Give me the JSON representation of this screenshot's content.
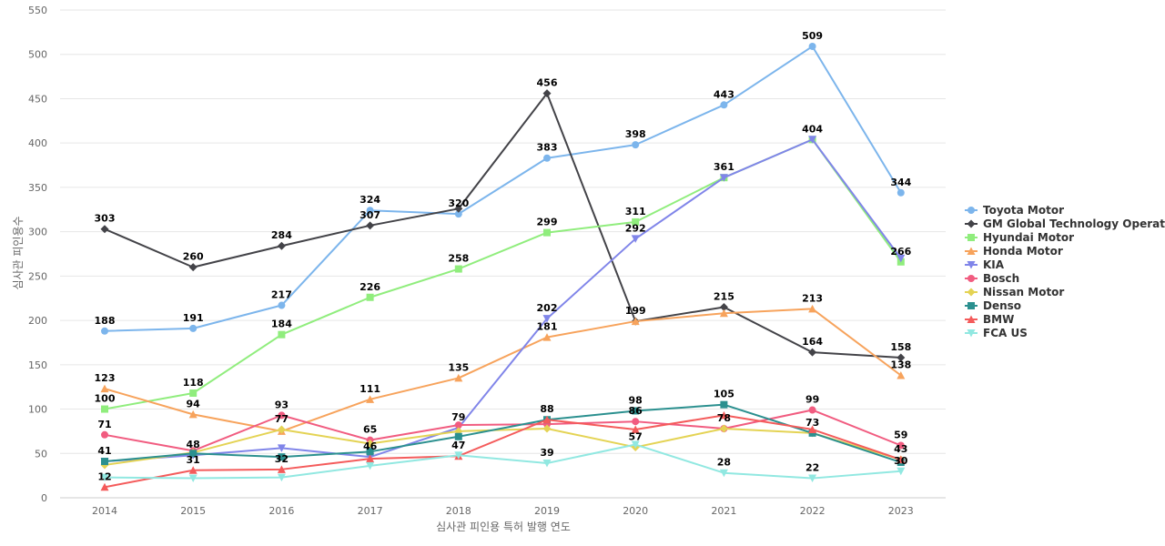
{
  "chart_data": {
    "type": "line",
    "xlabel": "심사관 피인용 특허 발행 연도",
    "ylabel": "심사관 피인용수",
    "ylim": [
      0,
      550
    ],
    "yticks": [
      0,
      50,
      100,
      150,
      200,
      250,
      300,
      350,
      400,
      450,
      500,
      550
    ],
    "grid": true,
    "legend_position": "right",
    "x": [
      "2014",
      "2015",
      "2016",
      "2017",
      "2018",
      "2019",
      "2020",
      "2021",
      "2022",
      "2023"
    ],
    "series": [
      {
        "name": "Toyota Motor",
        "color": "#7cb5ec",
        "marker": "circle",
        "values": [
          188,
          191,
          217,
          324,
          320,
          383,
          398,
          443,
          509,
          344
        ],
        "labeled": [
          true,
          true,
          true,
          true,
          true,
          true,
          true,
          true,
          true,
          true
        ]
      },
      {
        "name": "GM Global Technology Operat...",
        "color": "#434348",
        "marker": "diamond",
        "values": [
          303,
          260,
          284,
          307,
          326,
          456,
          199,
          215,
          164,
          158
        ],
        "labeled": [
          true,
          true,
          true,
          true,
          false,
          true,
          true,
          true,
          true,
          true
        ]
      },
      {
        "name": "Hyundai Motor",
        "color": "#90ed7d",
        "marker": "square",
        "values": [
          100,
          118,
          184,
          226,
          258,
          299,
          311,
          361,
          404,
          266
        ],
        "labeled": [
          true,
          true,
          true,
          true,
          true,
          true,
          true,
          true,
          false,
          true
        ]
      },
      {
        "name": "Honda Motor",
        "color": "#f7a35c",
        "marker": "triangle",
        "values": [
          123,
          94,
          75,
          111,
          135,
          181,
          199,
          208,
          213,
          138
        ],
        "labeled": [
          true,
          true,
          false,
          true,
          true,
          true,
          false,
          false,
          true,
          true
        ]
      },
      {
        "name": "KIA",
        "color": "#8085e9",
        "marker": "triangle-down",
        "values": [
          41,
          48,
          56,
          46,
          79,
          202,
          292,
          361,
          404,
          270
        ],
        "labeled": [
          false,
          true,
          false,
          true,
          true,
          true,
          true,
          false,
          true,
          false
        ]
      },
      {
        "name": "Bosch",
        "color": "#f15c80",
        "marker": "circle",
        "values": [
          71,
          53,
          93,
          65,
          82,
          83,
          86,
          78,
          99,
          59
        ],
        "labeled": [
          true,
          false,
          true,
          true,
          false,
          false,
          true,
          false,
          true,
          true
        ]
      },
      {
        "name": "Nissan Motor",
        "color": "#e4d354",
        "marker": "diamond",
        "values": [
          37,
          51,
          77,
          61,
          75,
          78,
          57,
          78,
          73,
          43
        ],
        "labeled": [
          false,
          false,
          true,
          false,
          false,
          false,
          true,
          true,
          false,
          true
        ]
      },
      {
        "name": "Denso",
        "color": "#2b908f",
        "marker": "square",
        "values": [
          41,
          50,
          46,
          52,
          69,
          88,
          98,
          105,
          73,
          40
        ],
        "labeled": [
          true,
          false,
          false,
          false,
          false,
          true,
          true,
          true,
          true,
          false
        ]
      },
      {
        "name": "BMW",
        "color": "#f45b5b",
        "marker": "triangle",
        "values": [
          12,
          31,
          32,
          44,
          47,
          88,
          77,
          93,
          77,
          43
        ],
        "labeled": [
          true,
          true,
          true,
          false,
          true,
          false,
          false,
          false,
          false,
          false
        ]
      },
      {
        "name": "FCA US",
        "color": "#91e8e1",
        "marker": "triangle-down",
        "values": [
          23,
          22,
          23,
          36,
          48,
          39,
          60,
          28,
          22,
          30
        ],
        "labeled": [
          false,
          false,
          false,
          false,
          false,
          true,
          false,
          true,
          true,
          true
        ]
      }
    ]
  }
}
